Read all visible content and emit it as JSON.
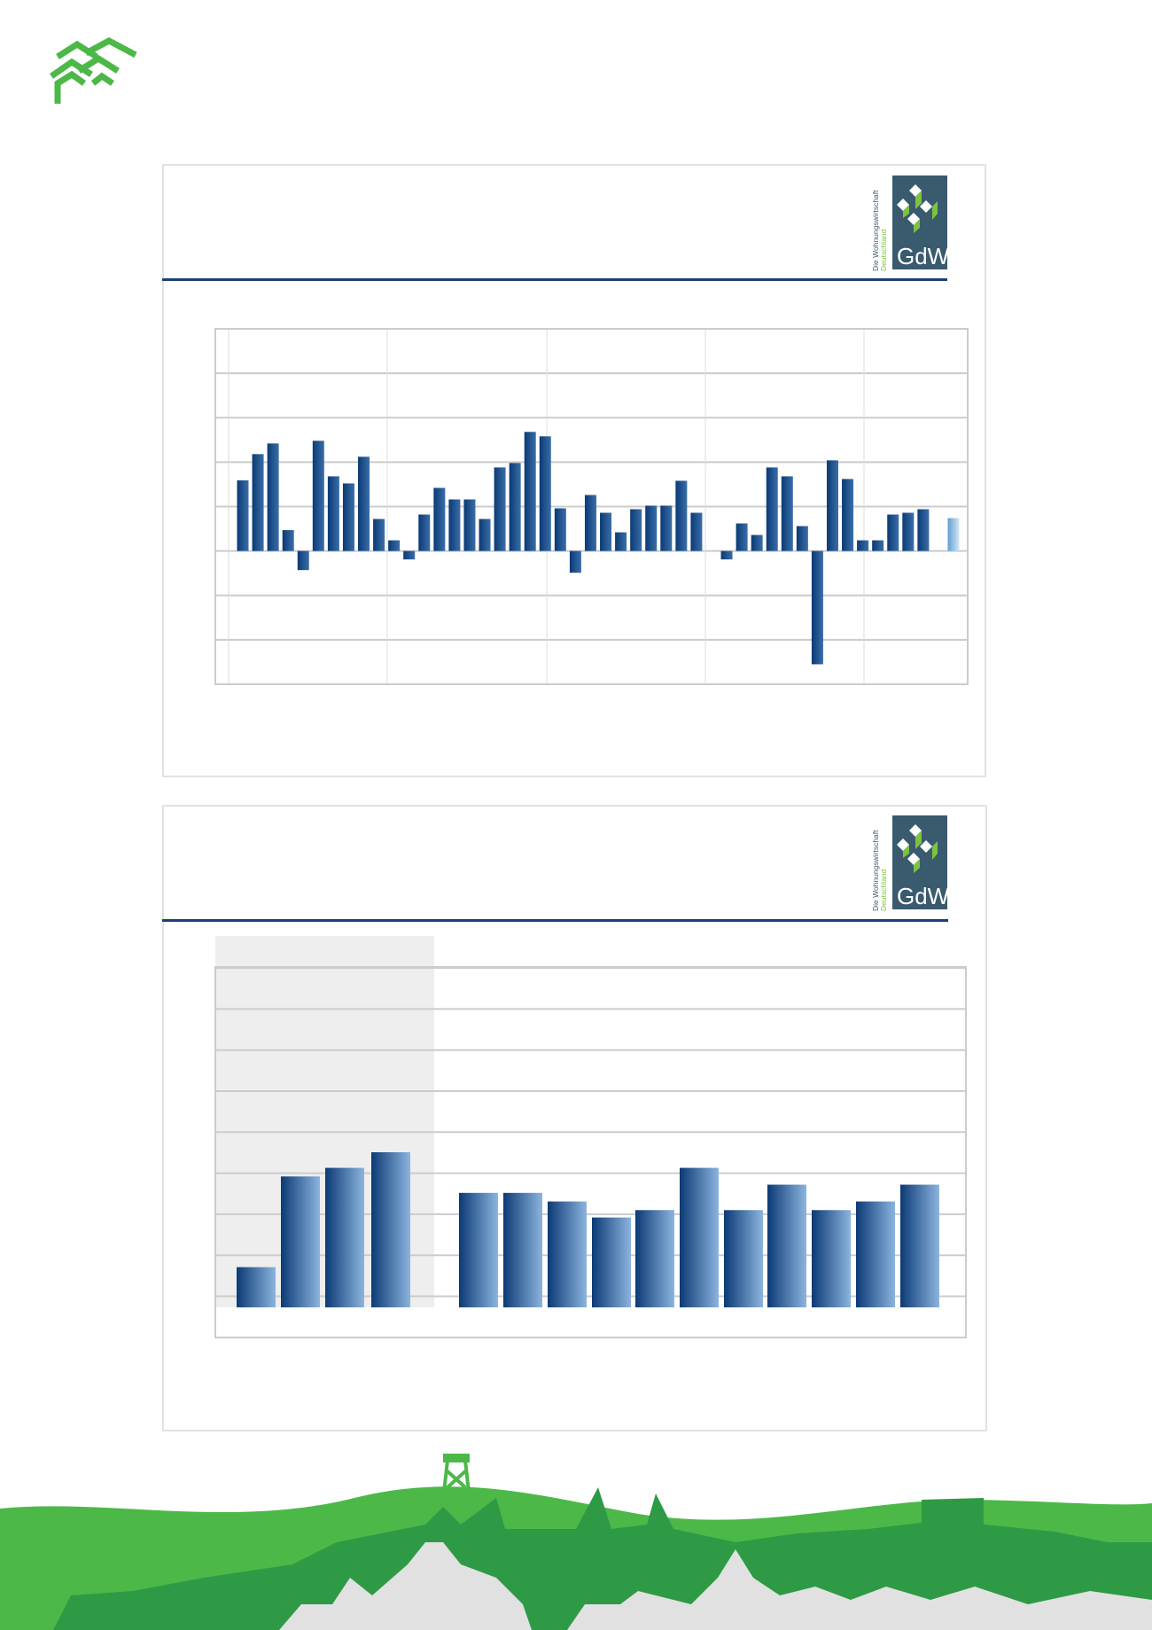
{
  "brand": {
    "header_logo": "housing-cooperative-logo",
    "logo_color": "#4cb848",
    "gdw_logo": {
      "tagline_line1": "Die Wohnungswirtschaft",
      "tagline_line2": "Deutschland",
      "wordmark": "GdW",
      "box_color": "#3a5a6e",
      "accent": "#7dc242"
    }
  },
  "colors": {
    "bar_dark": "#0b3a75",
    "bar_light": "#8cb4de",
    "forecast_bar": "#8cc0e6",
    "rule": "#1d3f73",
    "grid": "#cccccc",
    "shade": "#eeeeee"
  },
  "chart_data": [
    {
      "type": "bar",
      "title": "",
      "xlabel": "",
      "ylabel": "",
      "ylim": [
        -3,
        5
      ],
      "grid": true,
      "values": [
        1.59,
        2.18,
        2.42,
        0.47,
        -0.43,
        2.48,
        1.68,
        1.52,
        2.12,
        0.72,
        0.24,
        -0.19,
        0.82,
        1.42,
        1.16,
        1.16,
        0.72,
        1.88,
        1.98,
        2.68,
        2.58,
        0.96,
        -0.49,
        1.26,
        0.86,
        0.42,
        0.94,
        1.02,
        1.02,
        1.58,
        0.86,
        0,
        -0.19,
        0.62,
        0.36,
        1.88,
        1.68,
        0.56,
        -2.55,
        2.04,
        1.62,
        0.24,
        0.24,
        0.82,
        0.86,
        0.94,
        0,
        0.74
      ],
      "highlighted_last_bar": true
    },
    {
      "type": "bar",
      "title": "",
      "xlabel": "",
      "ylabel": "",
      "grid": true,
      "shaded_group_bars": 4,
      "values": [
        0.98,
        3.19,
        3.4,
        3.78,
        2.79,
        2.79,
        2.58,
        2.19,
        2.37,
        3.4,
        2.37,
        2.99,
        2.37,
        2.58,
        2.99
      ]
    }
  ],
  "landscape": {
    "hill_color": "#4cb848",
    "skyline_color": "#2e9a45",
    "houses_color": "#e1e1e1"
  }
}
